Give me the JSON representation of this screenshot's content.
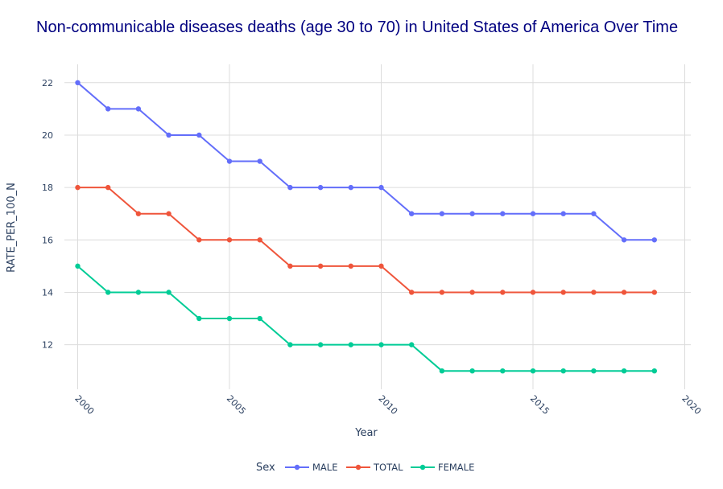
{
  "chart_data": {
    "type": "line",
    "title": "Non-communicable diseases deaths (age 30 to 70) in United States of America Over Time",
    "xlabel": "Year",
    "ylabel": "RATE_PER_100_N",
    "xlim": [
      2000,
      2020
    ],
    "ylim": [
      10.3,
      22.7
    ],
    "x_ticks": [
      2000,
      2005,
      2010,
      2015,
      2020
    ],
    "y_ticks": [
      12,
      14,
      16,
      18,
      20,
      22
    ],
    "grid": true,
    "legend_title": "Sex",
    "legend_position": "bottom-center",
    "x": [
      2000,
      2001,
      2002,
      2003,
      2004,
      2005,
      2006,
      2007,
      2008,
      2009,
      2010,
      2011,
      2012,
      2013,
      2014,
      2015,
      2016,
      2017,
      2018,
      2019
    ],
    "series": [
      {
        "name": "MALE",
        "color": "#636efa",
        "values": [
          22,
          21,
          21,
          20,
          20,
          19,
          19,
          18,
          18,
          18,
          18,
          17,
          17,
          17,
          17,
          17,
          17,
          17,
          16,
          16
        ]
      },
      {
        "name": "TOTAL",
        "color": "#ef553b",
        "values": [
          18,
          18,
          17,
          17,
          16,
          16,
          16,
          15,
          15,
          15,
          15,
          14,
          14,
          14,
          14,
          14,
          14,
          14,
          14,
          14
        ]
      },
      {
        "name": "FEMALE",
        "color": "#00cc96",
        "values": [
          15,
          14,
          14,
          14,
          13,
          13,
          13,
          12,
          12,
          12,
          12,
          12,
          11,
          11,
          11,
          11,
          11,
          11,
          11,
          11
        ]
      }
    ]
  }
}
